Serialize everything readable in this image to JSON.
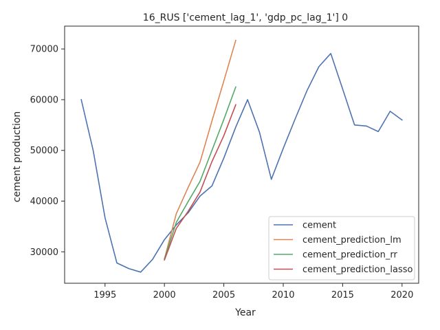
{
  "chart_data": {
    "type": "line",
    "title": "16_RUS ['cement_lag_1', 'gdp_pc_lag_1'] 0",
    "xlabel": "Year",
    "ylabel": "cement production",
    "xlim": [
      1991.6,
      2021.4
    ],
    "ylim": [
      23800,
      74500
    ],
    "x_ticks": [
      1995,
      2000,
      2005,
      2010,
      2015,
      2020
    ],
    "y_ticks": [
      30000,
      40000,
      50000,
      60000,
      70000
    ],
    "grid": false,
    "legend_position": "lower-right",
    "series": [
      {
        "name": "cement",
        "color": "#4c72b0",
        "x": [
          1993,
          1994,
          1995,
          1996,
          1997,
          1998,
          1999,
          2000,
          2001,
          2002,
          2003,
          2004,
          2005,
          2006,
          2007,
          2008,
          2009,
          2010,
          2011,
          2012,
          2013,
          2014,
          2015,
          2016,
          2017,
          2018,
          2019,
          2020
        ],
        "y": [
          60000,
          50000,
          36700,
          27800,
          26700,
          26000,
          28500,
          32400,
          35300,
          37700,
          41000,
          43000,
          48500,
          54600,
          60000,
          53600,
          44300,
          50400,
          56200,
          61800,
          66500,
          69100,
          62100,
          55000,
          54800,
          53700,
          57700,
          56000
        ]
      },
      {
        "name": "cement_prediction_lm",
        "color": "#dd8452",
        "x": [
          2000,
          2001,
          2002,
          2003,
          2004,
          2005,
          2006
        ],
        "y": [
          28600,
          37500,
          42700,
          47700,
          55800,
          63700,
          71700
        ]
      },
      {
        "name": "cement_prediction_rr",
        "color": "#55a868",
        "x": [
          2000,
          2001,
          2002,
          2003,
          2004,
          2005,
          2006
        ],
        "y": [
          28600,
          35800,
          39900,
          43900,
          50000,
          56100,
          62500
        ]
      },
      {
        "name": "cement_prediction_lasso",
        "color": "#c44e52",
        "x": [
          2000,
          2001,
          2002,
          2003,
          2004,
          2005,
          2006
        ],
        "y": [
          28400,
          34600,
          38000,
          41800,
          47800,
          52900,
          59000
        ]
      }
    ]
  }
}
